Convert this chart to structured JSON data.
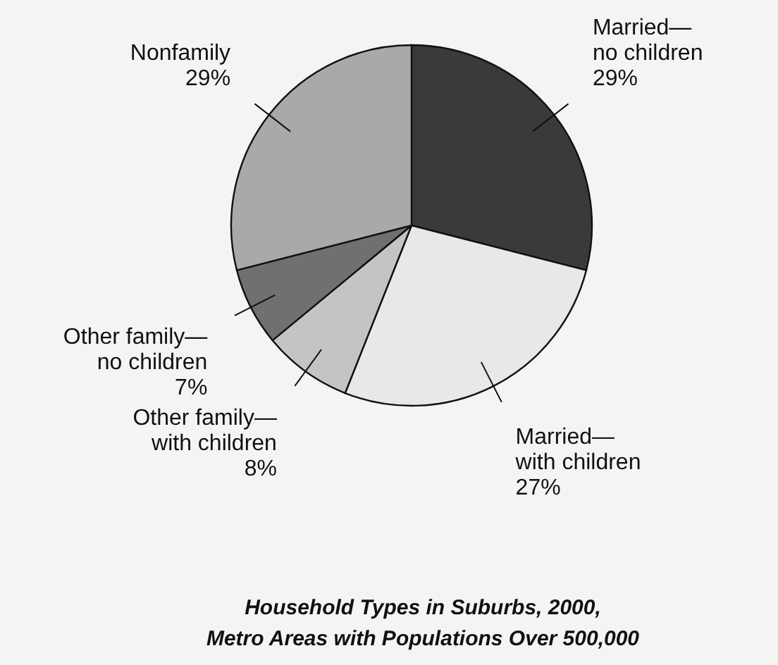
{
  "chart_data": {
    "type": "pie",
    "title": "Household Types in Suburbs, 2000,",
    "subtitle": "Metro Areas with Populations Over 500,000",
    "categories": [
      "Married—no children",
      "Married—with children",
      "Other family—with children",
      "Other family—no children",
      "Nonfamily"
    ],
    "values": [
      29,
      27,
      8,
      7,
      29
    ],
    "colors": [
      "#3a3a3a",
      "#e8e8e6",
      "#c4c4c2",
      "#707070",
      "#a9a9a7"
    ],
    "value_labels": [
      "29%",
      "27%",
      "8%",
      "7%",
      "29%"
    ]
  }
}
